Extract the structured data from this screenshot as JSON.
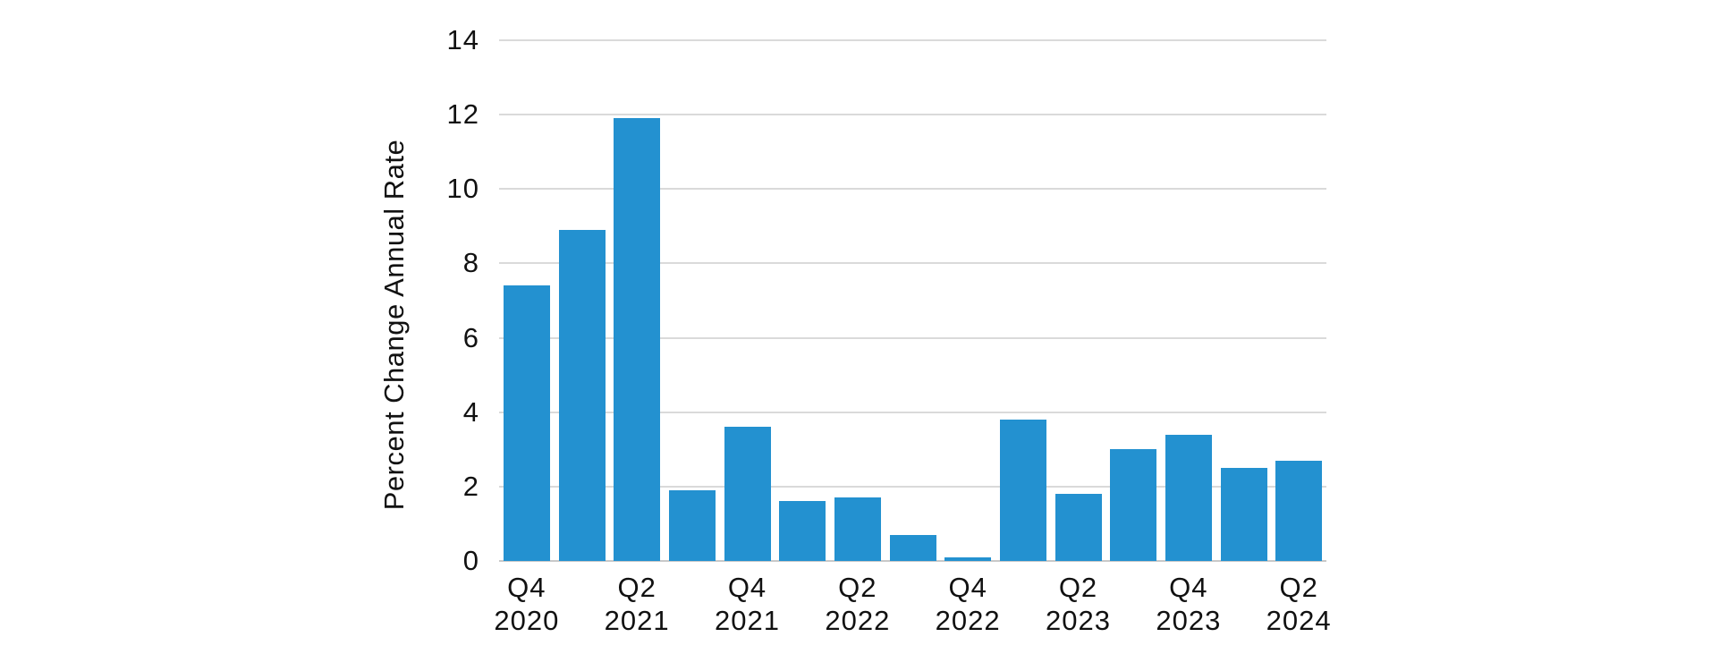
{
  "chart_data": {
    "type": "bar",
    "title": "",
    "xlabel": "",
    "ylabel": "Percent Change Annual Rate",
    "ylim": [
      0,
      14
    ],
    "yticks": [
      0,
      2,
      4,
      6,
      8,
      10,
      12,
      14
    ],
    "grid": "horizontal",
    "legend": false,
    "bars": [
      {
        "value": 7.4,
        "tick": [
          "Q4",
          "2020"
        ]
      },
      {
        "value": 8.9,
        "tick": null
      },
      {
        "value": 11.9,
        "tick": [
          "Q2",
          "2021"
        ]
      },
      {
        "value": 1.9,
        "tick": null
      },
      {
        "value": 3.6,
        "tick": [
          "Q4",
          "2021"
        ]
      },
      {
        "value": 1.6,
        "tick": null
      },
      {
        "value": 1.7,
        "tick": [
          "Q2",
          "2022"
        ]
      },
      {
        "value": 0.7,
        "tick": null
      },
      {
        "value": 0.1,
        "tick": [
          "Q4",
          "2022"
        ]
      },
      {
        "value": 3.8,
        "tick": null
      },
      {
        "value": 1.8,
        "tick": [
          "Q2",
          "2023"
        ]
      },
      {
        "value": 3.0,
        "tick": null
      },
      {
        "value": 3.4,
        "tick": [
          "Q4",
          "2023"
        ]
      },
      {
        "value": 2.5,
        "tick": null
      },
      {
        "value": 2.7,
        "tick": [
          "Q2",
          "2024"
        ]
      }
    ]
  },
  "colors": {
    "bar": "#2391d0",
    "gridline": "#dadada",
    "axis_line": "#c9c9c9",
    "text": "#111111",
    "background": "#ffffff"
  }
}
